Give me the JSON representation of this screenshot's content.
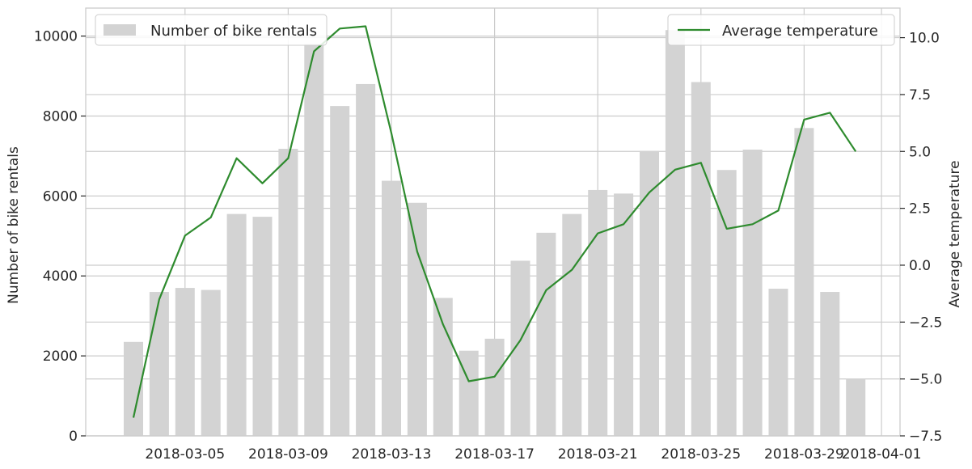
{
  "chart_data": {
    "type": "bar+line",
    "categories": [
      "2018-03-03",
      "2018-03-04",
      "2018-03-05",
      "2018-03-06",
      "2018-03-07",
      "2018-03-08",
      "2018-03-09",
      "2018-03-10",
      "2018-03-11",
      "2018-03-12",
      "2018-03-13",
      "2018-03-14",
      "2018-03-15",
      "2018-03-16",
      "2018-03-17",
      "2018-03-18",
      "2018-03-19",
      "2018-03-20",
      "2018-03-21",
      "2018-03-22",
      "2018-03-23",
      "2018-03-24",
      "2018-03-25",
      "2018-03-26",
      "2018-03-27",
      "2018-03-28",
      "2018-03-29",
      "2018-03-30",
      "2018-03-31",
      "2018-04-01"
    ],
    "series": [
      {
        "name": "Number of bike rentals",
        "type": "bar",
        "axis": "left",
        "color": "#d3d3d3",
        "values": [
          2350,
          3600,
          3700,
          3650,
          5550,
          5480,
          7180,
          9800,
          8250,
          8800,
          6380,
          5830,
          3450,
          2130,
          2430,
          4380,
          5080,
          5550,
          6150,
          6060,
          7130,
          10150,
          8850,
          6650,
          7160,
          3680,
          7700,
          3600,
          1430,
          null
        ]
      },
      {
        "name": "Average temperature",
        "type": "line",
        "axis": "right",
        "color": "#2e8b2e",
        "values": [
          -6.7,
          -1.5,
          1.3,
          2.1,
          4.7,
          3.6,
          4.7,
          9.4,
          10.4,
          10.5,
          5.8,
          0.6,
          -2.6,
          -5.1,
          -4.9,
          -3.3,
          -1.1,
          -0.2,
          1.4,
          1.8,
          3.2,
          4.2,
          4.5,
          1.6,
          1.8,
          2.4,
          6.4,
          6.7,
          5.0,
          null
        ]
      }
    ],
    "xticks": [
      "2018-03-05",
      "2018-03-09",
      "2018-03-13",
      "2018-03-17",
      "2018-03-21",
      "2018-03-25",
      "2018-03-29",
      "2018-04-01"
    ],
    "y_left": {
      "label": "Number of bike rentals",
      "lim": [
        0,
        10700
      ],
      "ticks": [
        0,
        2000,
        4000,
        6000,
        8000,
        10000
      ],
      "tick_labels": [
        "0",
        "2000",
        "4000",
        "6000",
        "8000",
        "10000"
      ]
    },
    "y_right": {
      "label": "Average temperature",
      "lim": [
        -7.5,
        11.3
      ],
      "ticks": [
        -7.5,
        -5.0,
        -2.5,
        0.0,
        2.5,
        5.0,
        7.5,
        10.0
      ],
      "tick_labels": [
        "−7.5",
        "−5.0",
        "−2.5",
        "0.0",
        "2.5",
        "5.0",
        "7.5",
        "10.0"
      ]
    },
    "grid": true,
    "legend_left": "top-left",
    "legend_right": "top-right",
    "xlabel": "",
    "title": ""
  }
}
